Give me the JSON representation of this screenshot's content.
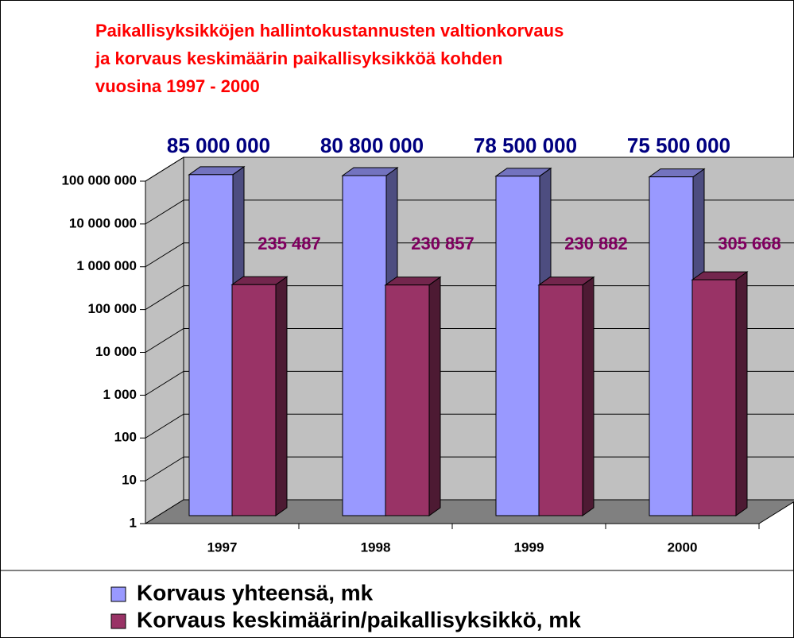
{
  "chart_data": {
    "type": "bar3d",
    "title": [
      "Paikallisyksikköjen hallintokustannusten valtionkorvaus",
      "ja korvaus keskimäärin paikallisyksikköä kohden",
      "vuosina 1997 - 2000"
    ],
    "categories": [
      "1997",
      "1998",
      "1999",
      "2000"
    ],
    "series": [
      {
        "name": "Korvaus yhteensä, mk",
        "color": "#9999ff",
        "values": [
          85000000,
          80800000,
          78500000,
          75500000
        ],
        "value_labels": [
          "85 000 000",
          "80 800 000",
          "78 500 000",
          "75 500 000"
        ]
      },
      {
        "name": "Korvaus keskimäärin/paikallisyksikkö, mk",
        "color": "#993366",
        "values": [
          235487,
          230857,
          230882,
          305668
        ],
        "value_labels": [
          "235 487",
          "230 857",
          "230 882",
          "305 668"
        ]
      }
    ],
    "log_scale": true,
    "ylim": [
      1,
      100000000
    ],
    "yticks": [
      1,
      10,
      100,
      {
        "value": 1000,
        "label": "1 000"
      },
      {
        "value": 10000,
        "label": "10 000"
      },
      {
        "value": 100000,
        "label": "100 000"
      },
      {
        "value": 1000000,
        "label": "1 000 000"
      },
      {
        "value": 10000000,
        "label": "10 000 000"
      },
      {
        "value": 100000000,
        "label": "100 000 000"
      }
    ],
    "grid": true
  }
}
